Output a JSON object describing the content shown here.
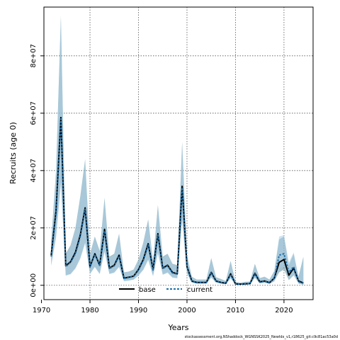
{
  "chart_data": {
    "type": "line",
    "xlabel": "Years",
    "ylabel": "Recruits (age 0)",
    "xlim": [
      1970.5,
      2026
    ],
    "ylim": [
      -5000000,
      97000000
    ],
    "x_ticks": [
      1970,
      1980,
      1990,
      2000,
      2010,
      2020
    ],
    "y_ticks": [
      0,
      20000000,
      40000000,
      60000000,
      80000000
    ],
    "y_tick_labels": [
      "0e+00",
      "2e+07",
      "4e+07",
      "6e+07",
      "8e+07"
    ],
    "grid": true,
    "legend": {
      "position": "bottom-center",
      "entries": [
        "base",
        "current"
      ]
    },
    "footer": "stockassessment.org,NShaddock_WGNSSK2025_NewIdx_v1,r18625_git:c9c81ac53a0d",
    "x": [
      1972,
      1973,
      1974,
      1975,
      1976,
      1977,
      1978,
      1979,
      1980,
      1981,
      1982,
      1983,
      1984,
      1985,
      1986,
      1987,
      1988,
      1989,
      1990,
      1991,
      1992,
      1993,
      1994,
      1995,
      1996,
      1997,
      1998,
      1999,
      2000,
      2001,
      2002,
      2003,
      2004,
      2005,
      2006,
      2007,
      2008,
      2009,
      2010,
      2011,
      2012,
      2013,
      2014,
      2015,
      2016,
      2017,
      2018,
      2019,
      2020,
      2021,
      2022,
      2023,
      2024
    ],
    "series": [
      {
        "name": "base",
        "color": "#000000",
        "values": [
          10500000,
          26000000,
          58500000,
          6800000,
          8200000,
          11500000,
          17500000,
          27000000,
          6500000,
          11000000,
          7000000,
          19500000,
          6000000,
          7000000,
          10500000,
          2500000,
          2800000,
          3200000,
          5500000,
          9000000,
          14500000,
          5500000,
          18000000,
          6000000,
          7000000,
          4500000,
          4000000,
          34500000,
          6500000,
          1500000,
          1000000,
          1000000,
          1000000,
          4500000,
          1500000,
          1000000,
          700000,
          4000000,
          500000,
          400000,
          500000,
          600000,
          4200000,
          1200000,
          1500000,
          900000,
          2500000,
          8000000,
          9000000,
          3500000,
          6000000,
          1500000,
          800000
        ],
        "lower": [
          7000000,
          17000000,
          36000000,
          3500000,
          4000000,
          6000000,
          9500000,
          15000000,
          4000000,
          6500000,
          4000000,
          12000000,
          4000000,
          4500000,
          6500000,
          1500000,
          1700000,
          2000000,
          3500000,
          5500000,
          9000000,
          3300000,
          11500000,
          3800000,
          4500000,
          2800000,
          2500000,
          23000000,
          4200000,
          900000,
          600000,
          600000,
          600000,
          2800000,
          900000,
          600000,
          400000,
          2500000,
          250000,
          200000,
          250000,
          350000,
          2700000,
          700000,
          900000,
          500000,
          1400000,
          4500000,
          5500000,
          1800000,
          3500000,
          700000,
          200000
        ],
        "upper": [
          15500000,
          40000000,
          94000000,
          11000000,
          14000000,
          20000000,
          31000000,
          44000000,
          11000000,
          17000000,
          12000000,
          30500000,
          10000000,
          11000000,
          18000000,
          4500000,
          4800000,
          5500000,
          9000000,
          15000000,
          23000000,
          8500000,
          28000000,
          10000000,
          11000000,
          7500000,
          7000000,
          50000000,
          10500000,
          3000000,
          2000000,
          2000000,
          2000000,
          9500000,
          2800000,
          2200000,
          1500000,
          8500000,
          1200000,
          900000,
          1200000,
          1300000,
          7500000,
          2500000,
          3000000,
          2000000,
          5000000,
          16000000,
          17000000,
          7000000,
          11000000,
          3000000,
          10000000
        ]
      },
      {
        "name": "current",
        "color": "#1f6fa8",
        "values": [
          10000000,
          25000000,
          58000000,
          6500000,
          8000000,
          11000000,
          17000000,
          26500000,
          6300000,
          10800000,
          6800000,
          19000000,
          5800000,
          6800000,
          10200000,
          2400000,
          2700000,
          3100000,
          5300000,
          8700000,
          14000000,
          5300000,
          17500000,
          5800000,
          6800000,
          4300000,
          3900000,
          34000000,
          6300000,
          1400000,
          950000,
          950000,
          950000,
          4300000,
          1400000,
          950000,
          650000,
          3800000,
          450000,
          380000,
          480000,
          580000,
          4000000,
          1100000,
          1400000,
          850000,
          2400000,
          10500000,
          11000000,
          4500000,
          6500000,
          1200000,
          700000
        ],
        "lower": [
          6800000,
          16500000,
          35000000,
          3300000,
          3800000,
          5800000,
          9200000,
          14500000,
          3900000,
          6300000,
          3900000,
          11500000,
          3900000,
          4300000,
          6300000,
          1400000,
          1600000,
          1900000,
          3300000,
          5300000,
          8700000,
          3100000,
          11000000,
          3600000,
          4300000,
          2600000,
          2400000,
          22500000,
          4000000,
          850000,
          550000,
          550000,
          550000,
          2600000,
          850000,
          550000,
          380000,
          2300000,
          230000,
          180000,
          230000,
          330000,
          2500000,
          650000,
          850000,
          480000,
          1300000,
          6000000,
          6500000,
          2500000,
          3800000,
          500000,
          150000
        ],
        "upper": [
          15000000,
          39000000,
          93000000,
          10500000,
          13500000,
          19500000,
          30000000,
          43000000,
          10500000,
          16500000,
          11500000,
          29500000,
          9500000,
          10500000,
          17500000,
          4300000,
          4600000,
          5300000,
          8700000,
          14500000,
          22500000,
          8200000,
          27500000,
          9500000,
          10500000,
          7200000,
          6800000,
          49500000,
          10000000,
          2800000,
          1900000,
          1900000,
          1900000,
          9000000,
          2700000,
          2000000,
          1400000,
          8200000,
          1100000,
          850000,
          1100000,
          1200000,
          7200000,
          2400000,
          2900000,
          1900000,
          4800000,
          17000000,
          17500000,
          8000000,
          11500000,
          2500000,
          9500000
        ]
      }
    ]
  }
}
